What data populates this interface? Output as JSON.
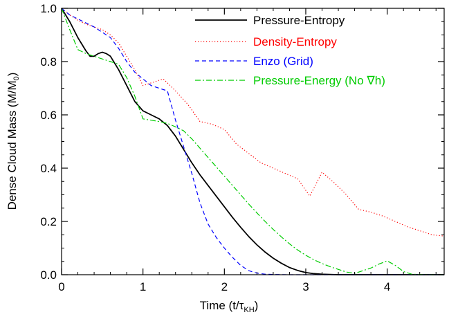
{
  "chart_data": {
    "type": "line",
    "xlabel": {
      "main": "Time  (t/τ",
      "sub": "KH",
      "end": ")"
    },
    "ylabel": {
      "main": "Dense Cloud Mass  (M/M",
      "sub": "0",
      "end": ")"
    },
    "xlim": [
      0,
      4.7
    ],
    "ylim": [
      0,
      1.0
    ],
    "x_ticks": [
      "0",
      "1",
      "2",
      "3",
      "4"
    ],
    "y_ticks": [
      "0.0",
      "0.2",
      "0.4",
      "0.6",
      "0.8",
      "1.0"
    ],
    "grid": false,
    "legend_position": "top-right",
    "series": [
      {
        "name": "Pressure-Entropy",
        "color": "#000000",
        "dash": "solid",
        "x": [
          0,
          0.1,
          0.2,
          0.3,
          0.35,
          0.4,
          0.45,
          0.5,
          0.55,
          0.6,
          0.7,
          0.8,
          0.9,
          1.0,
          1.1,
          1.2,
          1.3,
          1.4,
          1.5,
          1.6,
          1.7,
          1.8,
          1.9,
          2.0,
          2.1,
          2.2,
          2.3,
          2.4,
          2.5,
          2.6,
          2.7,
          2.8,
          2.9,
          3.0,
          3.1,
          3.2,
          3.3,
          3.4,
          3.5,
          4.0,
          4.7
        ],
        "y": [
          1.0,
          0.95,
          0.89,
          0.84,
          0.82,
          0.82,
          0.83,
          0.835,
          0.83,
          0.82,
          0.77,
          0.71,
          0.65,
          0.615,
          0.6,
          0.585,
          0.56,
          0.52,
          0.47,
          0.42,
          0.375,
          0.335,
          0.295,
          0.255,
          0.215,
          0.178,
          0.143,
          0.112,
          0.085,
          0.062,
          0.043,
          0.027,
          0.016,
          0.008,
          0.004,
          0.002,
          0.001,
          0.0,
          0.0,
          0.0,
          0.0
        ]
      },
      {
        "name": "Density-Entropy",
        "color": "#ff0000",
        "dash": "dotted",
        "x": [
          0,
          0.1,
          0.2,
          0.3,
          0.4,
          0.5,
          0.6,
          0.7,
          0.8,
          0.9,
          1.0,
          1.1,
          1.25,
          1.4,
          1.55,
          1.7,
          1.85,
          2.0,
          2.15,
          2.3,
          2.45,
          2.6,
          2.75,
          2.9,
          3.05,
          3.2,
          3.35,
          3.5,
          3.65,
          3.8,
          3.95,
          4.1,
          4.25,
          4.4,
          4.55,
          4.7
        ],
        "y": [
          1.0,
          0.975,
          0.955,
          0.94,
          0.93,
          0.92,
          0.9,
          0.87,
          0.82,
          0.77,
          0.71,
          0.72,
          0.735,
          0.69,
          0.64,
          0.575,
          0.565,
          0.545,
          0.49,
          0.455,
          0.42,
          0.4,
          0.38,
          0.36,
          0.295,
          0.385,
          0.345,
          0.3,
          0.245,
          0.235,
          0.22,
          0.2,
          0.18,
          0.165,
          0.15,
          0.145
        ]
      },
      {
        "name": "Enzo (Grid)",
        "color": "#0000ff",
        "dash": "dashed",
        "x": [
          0,
          0.1,
          0.2,
          0.3,
          0.4,
          0.5,
          0.6,
          0.7,
          0.8,
          0.9,
          1.0,
          1.1,
          1.2,
          1.3,
          1.4,
          1.5,
          1.6,
          1.7,
          1.8,
          1.9,
          2.0,
          2.1,
          2.2,
          2.3,
          2.4,
          2.5,
          2.6,
          2.8,
          3.0,
          3.5,
          4.0,
          4.7
        ],
        "y": [
          1.0,
          0.975,
          0.96,
          0.945,
          0.93,
          0.91,
          0.89,
          0.85,
          0.8,
          0.76,
          0.735,
          0.71,
          0.7,
          0.69,
          0.58,
          0.48,
          0.38,
          0.27,
          0.19,
          0.14,
          0.1,
          0.065,
          0.035,
          0.015,
          0.006,
          0.002,
          0.001,
          0.0,
          0.0,
          0.0,
          0.0,
          0.0
        ]
      },
      {
        "name": "Pressure-Energy (No ∇h)",
        "color": "#00cc00",
        "dash": "dashdot",
        "x": [
          0,
          0.1,
          0.2,
          0.3,
          0.4,
          0.5,
          0.6,
          0.7,
          0.8,
          0.9,
          1.0,
          1.1,
          1.2,
          1.3,
          1.4,
          1.5,
          1.6,
          1.7,
          1.8,
          1.9,
          2.0,
          2.1,
          2.2,
          2.3,
          2.4,
          2.5,
          2.6,
          2.7,
          2.8,
          2.9,
          3.0,
          3.1,
          3.2,
          3.3,
          3.4,
          3.5,
          3.6,
          3.7,
          3.8,
          3.9,
          4.0,
          4.1,
          4.2,
          4.3,
          4.5,
          4.7
        ],
        "y": [
          1.0,
          0.92,
          0.845,
          0.83,
          0.82,
          0.81,
          0.8,
          0.79,
          0.74,
          0.67,
          0.585,
          0.58,
          0.575,
          0.568,
          0.555,
          0.54,
          0.51,
          0.475,
          0.44,
          0.405,
          0.37,
          0.335,
          0.3,
          0.265,
          0.232,
          0.2,
          0.17,
          0.142,
          0.116,
          0.093,
          0.073,
          0.056,
          0.042,
          0.03,
          0.02,
          0.01,
          0.005,
          0.015,
          0.025,
          0.04,
          0.052,
          0.035,
          0.012,
          0.002,
          0.0,
          0.0
        ]
      }
    ]
  }
}
